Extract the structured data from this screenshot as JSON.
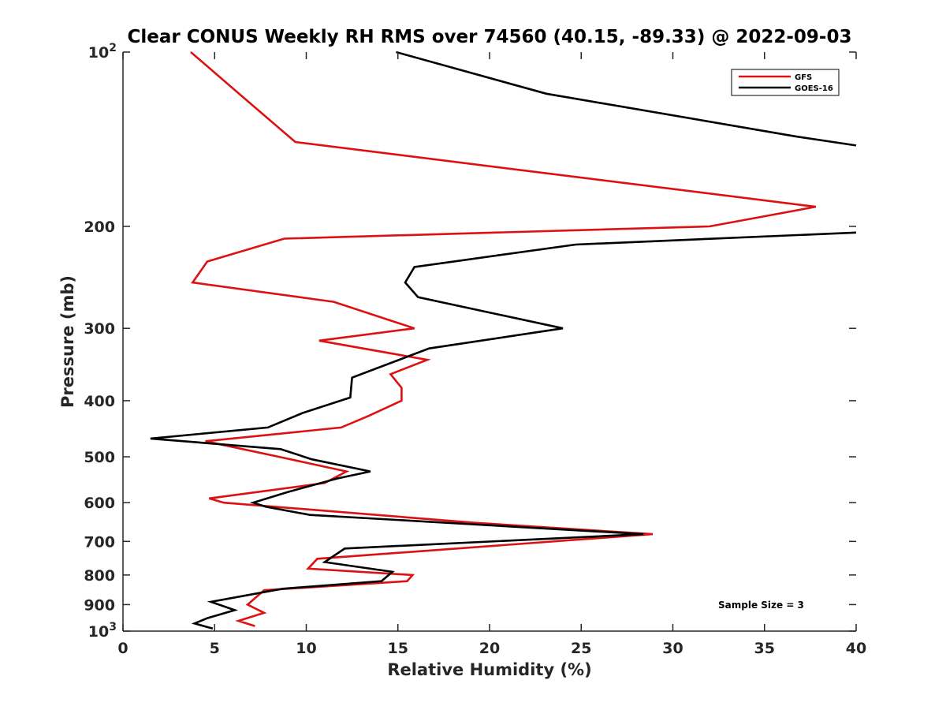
{
  "chart_data": {
    "type": "line",
    "title": "Clear CONUS Weekly RH RMS over 74560 (40.15, -89.33) @ 2022-09-03",
    "xlabel": "Relative Humidity (%)",
    "ylabel": "Pressure (mb)",
    "xlim": [
      0,
      40
    ],
    "ylim": [
      100,
      1000
    ],
    "y_scale": "log",
    "y_reversed": true,
    "grid": false,
    "legend_position": "top-right",
    "annotation": "Sample Size = 3",
    "x_ticks": [
      "0",
      "5",
      "10",
      "15",
      "20",
      "25",
      "30",
      "35",
      "40"
    ],
    "y_ticks": [
      {
        "value": 100,
        "label": "10",
        "sup": "2"
      },
      {
        "value": 200,
        "label": "200",
        "sup": ""
      },
      {
        "value": 300,
        "label": "300",
        "sup": ""
      },
      {
        "value": 400,
        "label": "400",
        "sup": ""
      },
      {
        "value": 500,
        "label": "500",
        "sup": ""
      },
      {
        "value": 600,
        "label": "600",
        "sup": ""
      },
      {
        "value": 700,
        "label": "700",
        "sup": ""
      },
      {
        "value": 800,
        "label": "800",
        "sup": ""
      },
      {
        "value": 900,
        "label": "900",
        "sup": ""
      },
      {
        "value": 1000,
        "label": "10",
        "sup": "3"
      }
    ],
    "series": [
      {
        "name": "GFS",
        "color": "#dd1111",
        "points": [
          [
            3.7,
            100
          ],
          [
            6.6,
            120
          ],
          [
            9.4,
            143
          ],
          [
            37.8,
            185
          ],
          [
            32.0,
            200
          ],
          [
            8.8,
            210
          ],
          [
            4.6,
            230
          ],
          [
            3.8,
            250
          ],
          [
            11.5,
            270
          ],
          [
            15.9,
            300
          ],
          [
            10.7,
            315
          ],
          [
            16.6,
            340
          ],
          [
            14.6,
            360
          ],
          [
            15.2,
            380
          ],
          [
            15.2,
            400
          ],
          [
            13.4,
            425
          ],
          [
            11.9,
            445
          ],
          [
            4.5,
            470
          ],
          [
            8.5,
            500
          ],
          [
            12.2,
            530
          ],
          [
            11.0,
            555
          ],
          [
            4.7,
            590
          ],
          [
            5.5,
            600
          ],
          [
            19.2,
            650
          ],
          [
            28.9,
            680
          ],
          [
            10.6,
            750
          ],
          [
            10.1,
            780
          ],
          [
            15.8,
            800
          ],
          [
            15.5,
            820
          ],
          [
            7.7,
            850
          ],
          [
            6.8,
            900
          ],
          [
            7.7,
            930
          ],
          [
            6.3,
            960
          ],
          [
            7.2,
            980
          ]
        ]
      },
      {
        "name": "GOES-16",
        "color": "#000000",
        "points": [
          [
            14.9,
            100
          ],
          [
            23.1,
            118
          ],
          [
            36.8,
            140
          ],
          [
            40.0,
            145
          ],
          null,
          [
            40.0,
            205
          ],
          [
            24.7,
            215
          ],
          [
            15.9,
            235
          ],
          [
            15.4,
            250
          ],
          [
            16.1,
            265
          ],
          [
            24.0,
            300
          ],
          [
            16.7,
            325
          ],
          [
            12.5,
            365
          ],
          [
            12.4,
            395
          ],
          [
            9.8,
            420
          ],
          [
            7.9,
            445
          ],
          [
            1.5,
            465
          ],
          [
            8.6,
            485
          ],
          [
            10.3,
            505
          ],
          [
            13.5,
            530
          ],
          [
            11.7,
            545
          ],
          [
            9.0,
            575
          ],
          [
            7.1,
            600
          ],
          [
            7.8,
            610
          ],
          [
            10.2,
            630
          ],
          [
            28.4,
            680
          ],
          [
            12.1,
            720
          ],
          [
            11.0,
            760
          ],
          [
            14.7,
            790
          ],
          [
            14.1,
            820
          ],
          [
            8.7,
            845
          ],
          [
            4.8,
            890
          ],
          [
            6.1,
            920
          ],
          [
            4.6,
            950
          ],
          [
            3.9,
            970
          ],
          [
            4.9,
            990
          ]
        ]
      }
    ]
  }
}
